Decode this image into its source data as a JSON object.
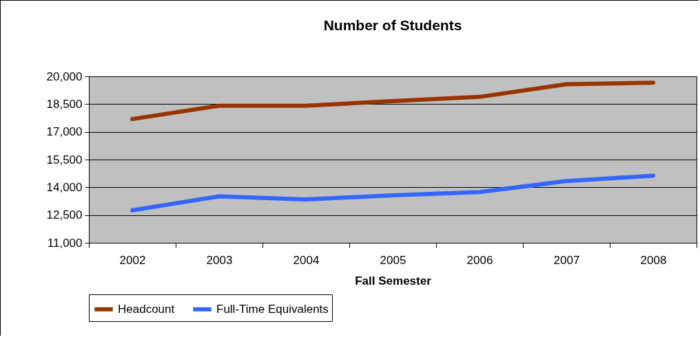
{
  "chart_data": {
    "type": "line",
    "title": "Number of Students",
    "xlabel": "Fall Semester",
    "categories": [
      "2002",
      "2003",
      "2004",
      "2005",
      "2006",
      "2007",
      "2008"
    ],
    "series": [
      {
        "name": "Headcount",
        "color": "#993300",
        "values": [
          17690,
          18410,
          18410,
          18660,
          18890,
          19570,
          19660
        ]
      },
      {
        "name": "Full-Time Equivalents",
        "color": "#3366ff",
        "values": [
          12760,
          13510,
          13340,
          13570,
          13740,
          14340,
          14630
        ]
      }
    ],
    "ylim": [
      11000,
      20000
    ],
    "yticks": [
      {
        "value": 11000,
        "label": "11,000"
      },
      {
        "value": 12500,
        "label": "12,500"
      },
      {
        "value": 14000,
        "label": "14,000"
      },
      {
        "value": 15500,
        "label": "15,500"
      },
      {
        "value": 17000,
        "label": "17,000"
      },
      {
        "value": 18500,
        "label": "18,500"
      },
      {
        "value": 20000,
        "label": "20,000"
      }
    ],
    "grid": "y",
    "legend": "bottom",
    "marker": "none",
    "line_style": "solid"
  }
}
